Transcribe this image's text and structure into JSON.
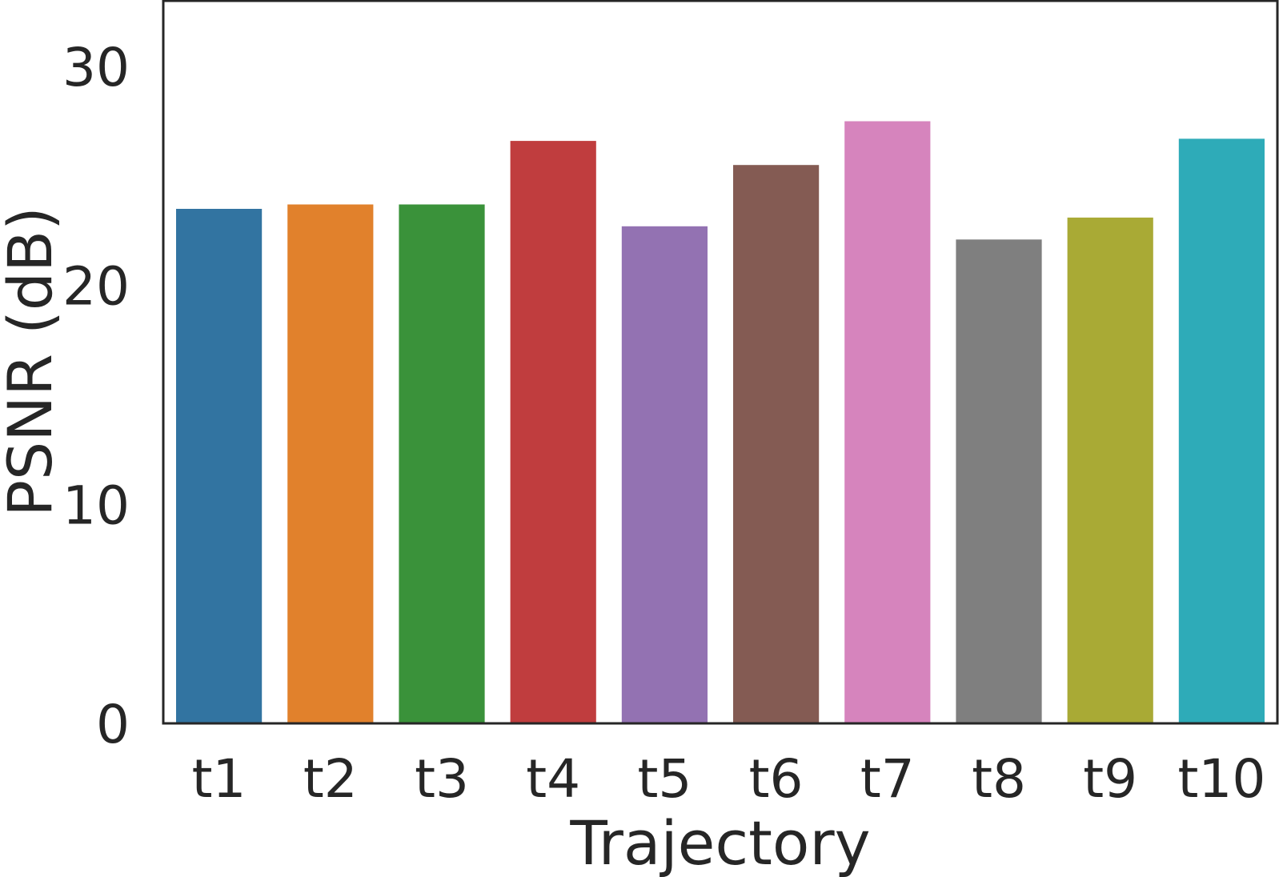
{
  "chart_data": {
    "type": "bar",
    "title": "",
    "xlabel": "Trajectory",
    "ylabel": "PSNR (dB)",
    "categories": [
      "t1",
      "t2",
      "t3",
      "t4",
      "t5",
      "t6",
      "t7",
      "t8",
      "t9",
      "t10"
    ],
    "values": [
      23.5,
      23.7,
      23.7,
      26.6,
      22.7,
      25.5,
      27.5,
      22.1,
      23.1,
      26.7
    ],
    "colors": [
      "#3274a1",
      "#e1812c",
      "#3a923a",
      "#c03d3e",
      "#9372b2",
      "#845b53",
      "#d684bd",
      "#7f7f7f",
      "#a9aa35",
      "#2eabb8"
    ],
    "ylim": [
      0,
      33
    ],
    "yticks": [
      0,
      10,
      20,
      30
    ],
    "grid": false,
    "legend": "none"
  }
}
